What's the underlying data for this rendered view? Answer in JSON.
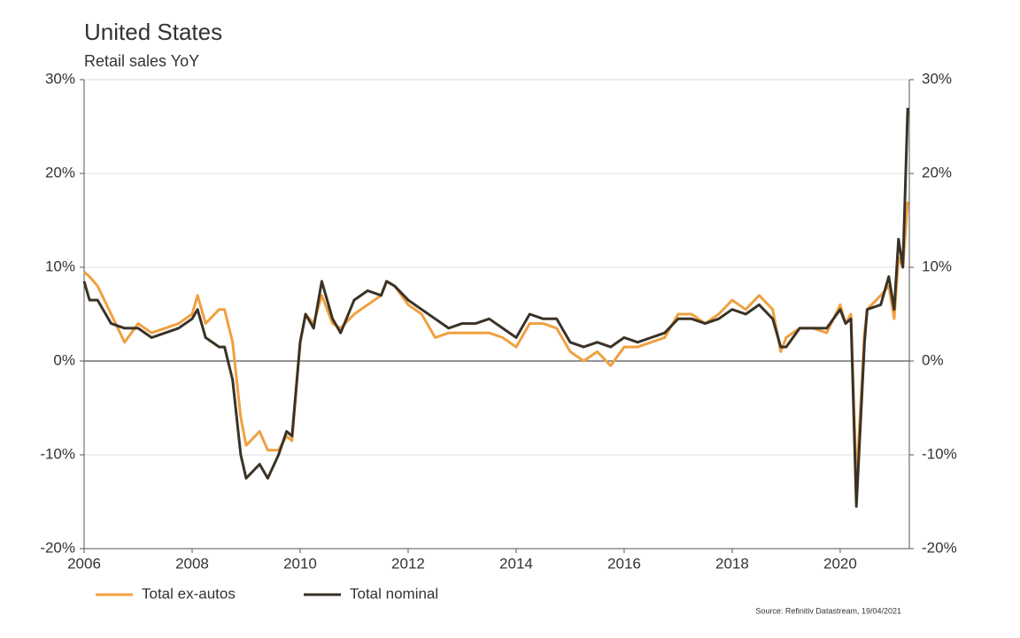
{
  "chart_data": {
    "type": "line",
    "title": "United States",
    "subtitle": "Retail sales YoY",
    "source": "Source: Refinitiv Datastream, 19/04/2021",
    "x": [
      2006,
      2006.1,
      2006.25,
      2006.5,
      2006.75,
      2007,
      2007.25,
      2007.5,
      2007.75,
      2008,
      2008.1,
      2008.25,
      2008.5,
      2008.6,
      2008.75,
      2008.9,
      2009,
      2009.25,
      2009.4,
      2009.6,
      2009.75,
      2009.85,
      2010,
      2010.1,
      2010.25,
      2010.4,
      2010.6,
      2010.75,
      2011,
      2011.25,
      2011.5,
      2011.6,
      2011.75,
      2012,
      2012.25,
      2012.5,
      2012.75,
      2013,
      2013.25,
      2013.5,
      2013.75,
      2014,
      2014.25,
      2014.5,
      2014.75,
      2015,
      2015.25,
      2015.5,
      2015.75,
      2016,
      2016.25,
      2016.5,
      2016.75,
      2017,
      2017.25,
      2017.5,
      2017.75,
      2018,
      2018.25,
      2018.5,
      2018.75,
      2018.9,
      2019,
      2019.25,
      2019.5,
      2019.75,
      2020,
      2020.1,
      2020.2,
      2020.3,
      2020.45,
      2020.5,
      2020.75,
      2020.9,
      2021,
      2021.08,
      2021.16,
      2021.25
    ],
    "series": [
      {
        "name": "Total ex-autos",
        "color": "#f0a040",
        "values": [
          9.5,
          9,
          8,
          5,
          2,
          4,
          3,
          3.5,
          4,
          5,
          7,
          4,
          5.5,
          5.5,
          2,
          -6,
          -9,
          -7.5,
          -9.5,
          -9.5,
          -8,
          -8.5,
          2,
          5,
          4,
          7,
          4,
          3.5,
          5,
          6,
          7,
          8.5,
          8,
          6,
          5,
          2.5,
          3,
          3,
          3,
          3,
          2.5,
          1.5,
          4,
          4,
          3.5,
          1,
          0,
          1,
          -0.5,
          1.5,
          1.5,
          2,
          2.5,
          5,
          5,
          4,
          5,
          6.5,
          5.5,
          7,
          5.5,
          1,
          2.5,
          3.5,
          3.5,
          3,
          6,
          4,
          5,
          -13,
          3,
          5.5,
          7,
          8,
          4.5,
          11,
          10,
          17
        ]
      },
      {
        "name": "Total nominal",
        "color": "#3a3226",
        "values": [
          8.5,
          6.5,
          6.5,
          4,
          3.5,
          3.5,
          2.5,
          3,
          3.5,
          4.5,
          5.5,
          2.5,
          1.5,
          1.5,
          -2,
          -10,
          -12.5,
          -11,
          -12.5,
          -10,
          -7.5,
          -8,
          2,
          5,
          3.5,
          8.5,
          4.5,
          3,
          6.5,
          7.5,
          7,
          8.5,
          8,
          6.5,
          5.5,
          4.5,
          3.5,
          4,
          4,
          4.5,
          3.5,
          2.5,
          5,
          4.5,
          4.5,
          2,
          1.5,
          2,
          1.5,
          2.5,
          2,
          2.5,
          3,
          4.5,
          4.5,
          4,
          4.5,
          5.5,
          5,
          6,
          4.5,
          1.5,
          1.5,
          3.5,
          3.5,
          3.5,
          5.5,
          4,
          4.5,
          -15.5,
          2,
          5.5,
          6,
          9,
          5.5,
          13,
          10,
          27
        ]
      }
    ],
    "xlim": [
      2006,
      2021.28
    ],
    "xticks": [
      2006,
      2008,
      2010,
      2012,
      2014,
      2016,
      2018,
      2020
    ],
    "ylim": [
      -20,
      30
    ],
    "yticks": [
      {
        "value": -20,
        "label": "-20%"
      },
      {
        "value": -10,
        "label": "-10%"
      },
      {
        "value": 0,
        "label": "0%"
      },
      {
        "value": 10,
        "label": "10%"
      },
      {
        "value": 20,
        "label": "20%"
      },
      {
        "value": 30,
        "label": "30%"
      }
    ],
    "y2lim": [
      -20,
      30
    ],
    "y2ticks": [
      {
        "value": -20,
        "label": "-20%"
      },
      {
        "value": -10,
        "label": "-10%"
      },
      {
        "value": 0,
        "label": "0%"
      },
      {
        "value": 10,
        "label": "10%"
      },
      {
        "value": 20,
        "label": "20%"
      },
      {
        "value": 30,
        "label": "30%"
      }
    ],
    "grid": true,
    "legend": "bottom-left"
  }
}
